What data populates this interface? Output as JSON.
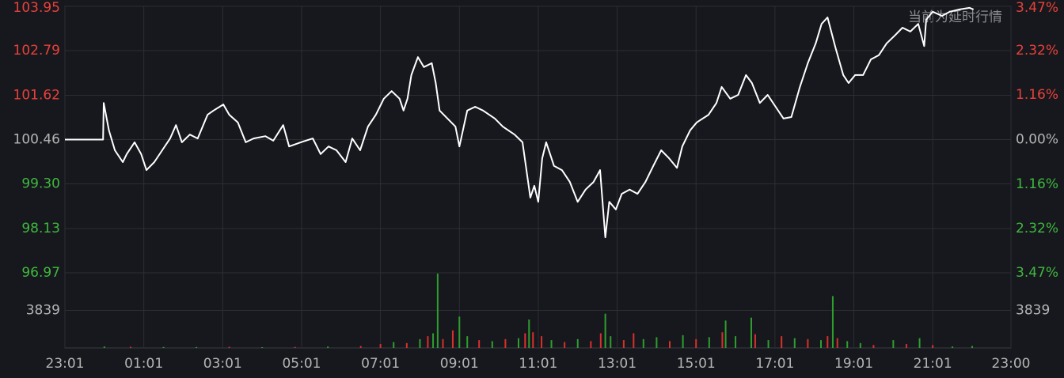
{
  "chart_data": [
    {
      "type": "line",
      "annotation": "当前为延时行情",
      "color": "#ffffff",
      "up_color": "#e8413a",
      "down_color": "#3fb83f",
      "flat_color": "#b4b4b4",
      "grid": true,
      "x": [
        0,
        58,
        59,
        67,
        76,
        88,
        94,
        106,
        116,
        124,
        136,
        148,
        160,
        169,
        178,
        190,
        202,
        217,
        226,
        241,
        250,
        263,
        275,
        287,
        305,
        317,
        332,
        341,
        359,
        377,
        389,
        401,
        413,
        427,
        437,
        449,
        461,
        473,
        485,
        497,
        509,
        515,
        521,
        527,
        537,
        546,
        558,
        564,
        570,
        582,
        594,
        600,
        612,
        624,
        636,
        654,
        666,
        684,
        696,
        708,
        714,
        720,
        726,
        732,
        744,
        756,
        768,
        780,
        792,
        804,
        814,
        822,
        828,
        838,
        847,
        859,
        871,
        883,
        895,
        907,
        919,
        931,
        939,
        951,
        961,
        979,
        991,
        999,
        1012,
        1024,
        1036,
        1045,
        1057,
        1069,
        1081,
        1093,
        1105,
        1118,
        1130,
        1142,
        1151,
        1160,
        1172,
        1184,
        1192,
        1202,
        1214,
        1226,
        1238,
        1250,
        1262,
        1274,
        1286,
        1298,
        1307,
        1310,
        1320,
        1334,
        1346,
        1361,
        1376,
        1382
      ],
      "values": [
        100.46,
        100.46,
        101.42,
        100.7,
        100.18,
        99.87,
        100.08,
        100.39,
        100.08,
        99.66,
        99.87,
        100.18,
        100.49,
        100.84,
        100.39,
        100.59,
        100.49,
        101.11,
        101.22,
        101.38,
        101.11,
        100.91,
        100.39,
        100.49,
        100.55,
        100.43,
        100.84,
        100.28,
        100.39,
        100.49,
        100.08,
        100.28,
        100.18,
        99.87,
        100.49,
        100.18,
        100.8,
        101.11,
        101.53,
        101.73,
        101.53,
        101.22,
        101.53,
        102.15,
        102.62,
        102.36,
        102.46,
        101.94,
        101.22,
        101.01,
        100.8,
        100.28,
        101.22,
        101.32,
        101.22,
        101.01,
        100.8,
        100.59,
        100.39,
        98.94,
        99.25,
        98.83,
        99.97,
        100.39,
        99.77,
        99.66,
        99.35,
        98.83,
        99.15,
        99.35,
        99.66,
        97.9,
        98.83,
        98.63,
        99.04,
        99.15,
        99.04,
        99.35,
        99.77,
        100.18,
        99.97,
        99.72,
        100.28,
        100.7,
        100.91,
        101.11,
        101.42,
        101.84,
        101.53,
        101.63,
        102.15,
        101.94,
        101.42,
        101.63,
        101.32,
        101.01,
        101.05,
        101.84,
        102.46,
        102.98,
        103.49,
        103.66,
        102.87,
        102.15,
        101.94,
        102.15,
        102.15,
        102.56,
        102.67,
        102.98,
        103.18,
        103.39,
        103.29,
        103.49,
        102.91,
        103.6,
        103.81,
        103.7,
        103.81,
        103.87,
        103.91,
        103.87
      ],
      "xlim": [
        0,
        1439
      ],
      "xticks": [
        {
          "value": 0,
          "label": "23:01"
        },
        {
          "value": 120,
          "label": "01:01"
        },
        {
          "value": 240,
          "label": "03:01"
        },
        {
          "value": 360,
          "label": "05:01"
        },
        {
          "value": 480,
          "label": "07:01"
        },
        {
          "value": 600,
          "label": "09:01"
        },
        {
          "value": 720,
          "label": "11:01"
        },
        {
          "value": 840,
          "label": "13:01"
        },
        {
          "value": 960,
          "label": "15:01"
        },
        {
          "value": 1080,
          "label": "17:01"
        },
        {
          "value": 1200,
          "label": "19:01"
        },
        {
          "value": 1320,
          "label": "21:01"
        },
        {
          "value": 1439,
          "label": "23:00"
        }
      ],
      "ylim": [
        96.97,
        103.95
      ],
      "yticks": [
        103.95,
        102.79,
        101.62,
        100.46,
        {
          "value": 99.3,
          "label": "99.30"
        },
        98.13,
        96.97
      ],
      "y2lim": [
        -3.47,
        3.47
      ],
      "y2ticks": [
        {
          "value": 3.47,
          "label": "3.47%"
        },
        {
          "value": 2.32,
          "label": "2.32%"
        },
        {
          "value": 1.16,
          "label": "1.16%"
        },
        {
          "value": 0,
          "label": "0.00%"
        },
        {
          "value": -1.16,
          "label": "1.16%"
        },
        {
          "value": -2.32,
          "label": "2.32%"
        },
        {
          "value": -3.47,
          "label": "3.47%"
        }
      ]
    },
    {
      "type": "bar",
      "xlim": [
        0,
        1439
      ],
      "ylim": [
        0,
        7678
      ],
      "yticks": [
        3839
      ],
      "tick_color": "#b4b4b4",
      "x": [
        60,
        100,
        150,
        200,
        250,
        300,
        350,
        400,
        450,
        480,
        500,
        520,
        540,
        552,
        560,
        567,
        575,
        590,
        600,
        612,
        630,
        650,
        670,
        690,
        700,
        706,
        712,
        725,
        740,
        760,
        780,
        800,
        815,
        822,
        830,
        850,
        865,
        880,
        900,
        920,
        940,
        960,
        980,
        1000,
        1005,
        1020,
        1044,
        1050,
        1070,
        1090,
        1110,
        1130,
        1150,
        1160,
        1168,
        1175,
        1190,
        1210,
        1230,
        1260,
        1280,
        1300,
        1320,
        1350,
        1380
      ],
      "values": [
        150,
        120,
        100,
        90,
        120,
        80,
        100,
        150,
        200,
        400,
        600,
        500,
        900,
        1200,
        1500,
        7600,
        900,
        1800,
        3200,
        1200,
        800,
        700,
        900,
        1000,
        1500,
        2900,
        1600,
        1200,
        800,
        600,
        900,
        700,
        1500,
        3500,
        1200,
        800,
        1500,
        900,
        1100,
        700,
        1300,
        900,
        1100,
        1600,
        2800,
        1200,
        3100,
        1400,
        800,
        1200,
        1000,
        900,
        800,
        1200,
        5300,
        1000,
        700,
        500,
        300,
        800,
        400,
        1000,
        300,
        150,
        200
      ],
      "colors": [
        "#2e9e2e",
        "#d9302a",
        "#2e9e2e",
        "#2e9e2e",
        "#d9302a",
        "#2e9e2e",
        "#d9302a",
        "#2e9e2e",
        "#d9302a",
        "#d9302a",
        "#2e9e2e",
        "#d9302a",
        "#2e9e2e",
        "#d9302a",
        "#2e9e2e",
        "#2e9e2e",
        "#d9302a",
        "#d9302a",
        "#2e9e2e",
        "#2e9e2e",
        "#d9302a",
        "#2e9e2e",
        "#d9302a",
        "#2e9e2e",
        "#d9302a",
        "#2e9e2e",
        "#d9302a",
        "#d9302a",
        "#2e9e2e",
        "#d9302a",
        "#2e9e2e",
        "#d9302a",
        "#d9302a",
        "#2e9e2e",
        "#2e9e2e",
        "#d9302a",
        "#d9302a",
        "#2e9e2e",
        "#2e9e2e",
        "#d9302a",
        "#2e9e2e",
        "#d9302a",
        "#2e9e2e",
        "#d9302a",
        "#2e9e2e",
        "#2e9e2e",
        "#2e9e2e",
        "#d9302a",
        "#2e9e2e",
        "#d9302a",
        "#2e9e2e",
        "#d9302a",
        "#2e9e2e",
        "#d9302a",
        "#2e9e2e",
        "#d9302a",
        "#2e9e2e",
        "#2e9e2e",
        "#d9302a",
        "#2e9e2e",
        "#d9302a",
        "#2e9e2e",
        "#d9302a",
        "#2e9e2e",
        "#2e9e2e"
      ]
    }
  ]
}
